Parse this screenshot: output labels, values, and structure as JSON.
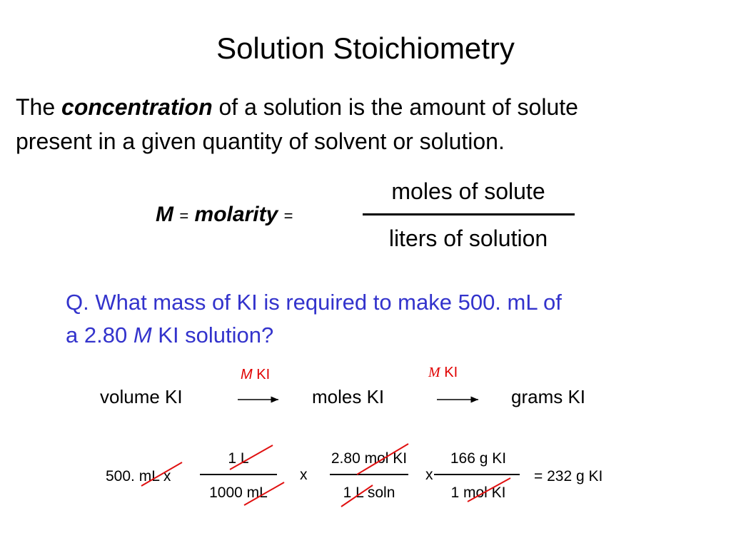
{
  "title": "Solution Stoichiometry",
  "definition": {
    "lead": "The",
    "term": "concentration",
    "rest_line1": "of a solution is the amount of solute",
    "rest_line2": "present in a given quantity of solvent or solution."
  },
  "formula": {
    "symbol": "M",
    "eq1": "=",
    "word": "molarity",
    "eq2": "=",
    "numerator": "moles of solute",
    "denominator": "liters of solution"
  },
  "question": {
    "line1": "Q. What mass of KI is required to make 500. mL of",
    "line2_start": "a 2.80",
    "line2_symbol": "M",
    "line2_end": "KI solution?"
  },
  "flow": {
    "steps": [
      "volume KI",
      "moles KI",
      "grams KI"
    ],
    "arrows": [
      {
        "symbol": "M",
        "label": "KI"
      },
      {
        "symbol": "M",
        "label": "KI"
      }
    ]
  },
  "calculation": {
    "start": "500. mL x",
    "fractions": [
      {
        "numerator": "1 L",
        "denominator": "1000 mL"
      },
      {
        "numerator": "2.80 mol KI",
        "denominator": "1 L soln"
      },
      {
        "numerator": "166 g KI",
        "denominator": "1 mol KI"
      }
    ],
    "times": [
      "x",
      "x"
    ],
    "result": "= 232 g KI"
  }
}
